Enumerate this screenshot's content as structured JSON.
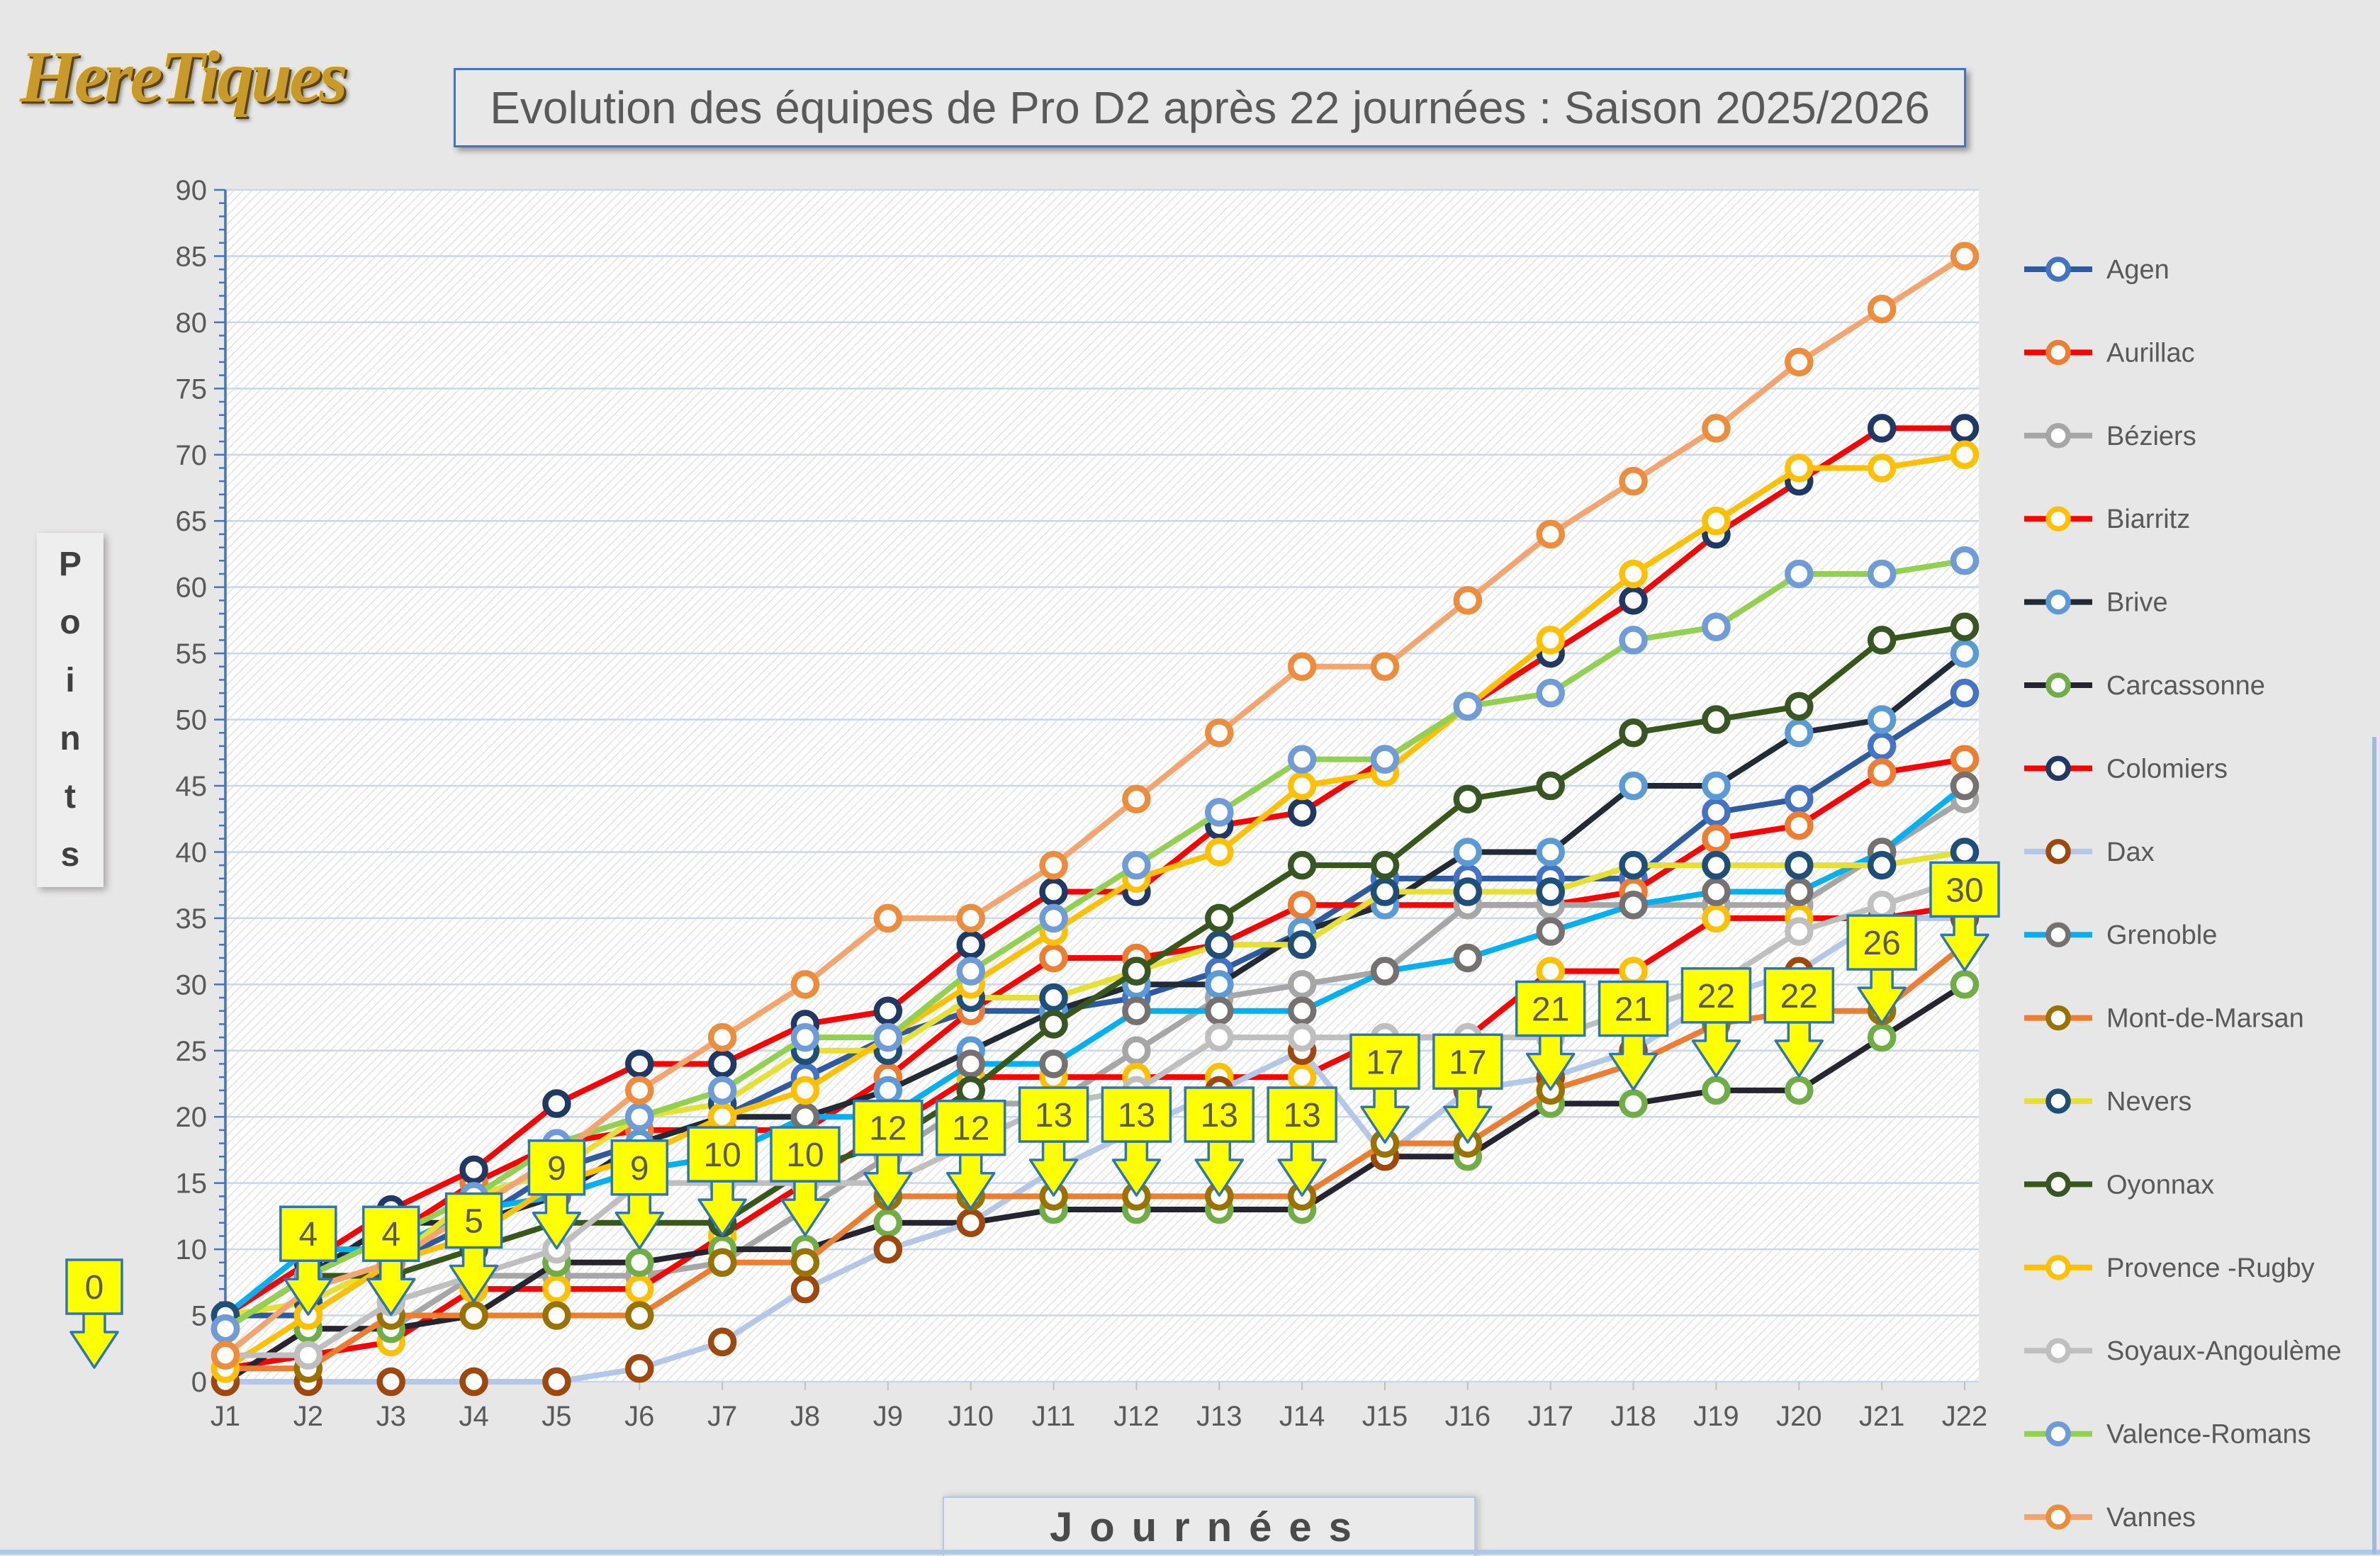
{
  "logo": {
    "text": "HereTiques"
  },
  "header": {
    "title": "Evolution des équipes de Pro D2 après 22 journées : Saison 2025/2026"
  },
  "y_axis_label": {
    "letters": [
      "P",
      "o",
      "i",
      "n",
      "t",
      "s"
    ],
    "text": "Points"
  },
  "x_axis_label": {
    "text": "Journées"
  },
  "chart_data": {
    "type": "line",
    "title": "Evolution des équipes de Pro D2 après 22 journées : Saison 2025/2026",
    "xlabel": "Journées",
    "ylabel": "Points",
    "x_categories": [
      "J1",
      "J2",
      "J3",
      "J4",
      "J5",
      "J6",
      "J7",
      "J8",
      "J9",
      "J10",
      "J11",
      "J12",
      "J13",
      "J14",
      "J15",
      "J16",
      "J17",
      "J18",
      "J19",
      "J20",
      "J21",
      "J22"
    ],
    "ylim": [
      0,
      90
    ],
    "ytick_step": 5,
    "grid": true,
    "legend_position": "right",
    "colors": {
      "axis": "#4472C4",
      "gridline": "#C9D7EC",
      "tick_label": "#595959",
      "plot_background": "#FFFFFF",
      "hatch": "#DCDCDC"
    },
    "series": [
      {
        "name": "Agen",
        "line_color": "#2E5B9F",
        "marker_color": "#4472C4",
        "values": [
          5,
          5,
          9,
          12,
          16,
          18,
          20,
          23,
          26,
          28,
          28,
          29,
          31,
          34,
          38,
          38,
          38,
          38,
          43,
          44,
          48,
          52
        ]
      },
      {
        "name": "Aurillac",
        "line_color": "#FF0000",
        "marker_color": "#ED7D31",
        "values": [
          4,
          8,
          11,
          15,
          18,
          19,
          19,
          19,
          23,
          28,
          32,
          32,
          33,
          36,
          36,
          36,
          36,
          37,
          41,
          42,
          46,
          47
        ]
      },
      {
        "name": "Béziers",
        "line_color": "#A6A6A6",
        "marker_color": "#A6A6A6",
        "values": [
          0,
          4,
          4,
          8,
          8,
          8,
          9,
          13,
          17,
          21,
          21,
          25,
          29,
          30,
          31,
          36,
          36,
          36,
          36,
          36,
          40,
          44
        ]
      },
      {
        "name": "Biarritz",
        "line_color": "#FF0000",
        "marker_color": "#FFC000",
        "values": [
          1,
          2,
          3,
          7,
          7,
          7,
          11,
          15,
          19,
          23,
          23,
          23,
          23,
          23,
          26,
          26,
          31,
          31,
          35,
          35,
          35,
          36
        ]
      },
      {
        "name": "Brive",
        "line_color": "#222A35",
        "marker_color": "#5B9BD5",
        "values": [
          4,
          8,
          12,
          12,
          14,
          18,
          20,
          20,
          22,
          25,
          28,
          30,
          30,
          34,
          36,
          40,
          40,
          45,
          45,
          49,
          50,
          55
        ]
      },
      {
        "name": "Carcassonne",
        "line_color": "#252430",
        "marker_color": "#70AD47",
        "values": [
          0,
          4,
          4,
          5,
          9,
          9,
          10,
          10,
          12,
          12,
          13,
          13,
          13,
          13,
          17,
          17,
          21,
          21,
          22,
          22,
          26,
          30
        ]
      },
      {
        "name": "Colomiers",
        "line_color": "#FF0000",
        "marker_color": "#1F3864",
        "values": [
          5,
          9,
          13,
          16,
          21,
          24,
          24,
          27,
          28,
          33,
          37,
          37,
          42,
          43,
          47,
          51,
          55,
          59,
          64,
          68,
          72,
          72
        ]
      },
      {
        "name": "Dax",
        "line_color": "#B4C7E7",
        "marker_color": "#9E480E",
        "values": [
          0,
          0,
          0,
          0,
          0,
          1,
          3,
          7,
          10,
          12,
          16,
          19,
          22,
          25,
          17,
          22,
          23,
          25,
          29,
          31,
          35,
          35
        ]
      },
      {
        "name": "Grenoble",
        "line_color": "#00B0F0",
        "marker_color": "#767171",
        "values": [
          5,
          10,
          10,
          13,
          14,
          16,
          17,
          20,
          20,
          24,
          24,
          28,
          28,
          28,
          31,
          32,
          34,
          36,
          37,
          37,
          40,
          45
        ]
      },
      {
        "name": "Mont-de-Marsan",
        "line_color": "#ED7D31",
        "marker_color": "#997300",
        "values": [
          1,
          1,
          5,
          5,
          5,
          5,
          9,
          9,
          14,
          14,
          14,
          14,
          14,
          14,
          18,
          18,
          22,
          24,
          27,
          28,
          28,
          33
        ]
      },
      {
        "name": "Nevers",
        "line_color": "#E5E031",
        "marker_color": "#1F4E79",
        "values": [
          5,
          6,
          9,
          14,
          16,
          20,
          21,
          25,
          25,
          29,
          29,
          31,
          33,
          33,
          37,
          37,
          37,
          39,
          39,
          39,
          39,
          40
        ]
      },
      {
        "name": "Oyonnax",
        "line_color": "#38571A",
        "marker_color": "#375623",
        "values": [
          4,
          8,
          8,
          10,
          12,
          12,
          12,
          16,
          18,
          22,
          27,
          31,
          35,
          39,
          39,
          44,
          45,
          49,
          50,
          51,
          56,
          57
        ]
      },
      {
        "name": "Provence -Rugby",
        "line_color": "#FFC000",
        "marker_color": "#FFC000",
        "values": [
          1,
          5,
          9,
          11,
          15,
          17,
          20,
          22,
          26,
          30,
          34,
          38,
          40,
          45,
          46,
          51,
          56,
          61,
          65,
          69,
          69,
          70
        ]
      },
      {
        "name": "Soyaux-Angoulème",
        "line_color": "#BFBFBF",
        "marker_color": "#BFBFBF",
        "values": [
          2,
          2,
          6,
          8,
          10,
          15,
          15,
          15,
          15,
          18,
          21,
          22,
          26,
          26,
          26,
          26,
          26,
          28,
          30,
          34,
          36,
          38
        ]
      },
      {
        "name": "Valence-Romans",
        "line_color": "#92D050",
        "marker_color": "#6F9BD8",
        "values": [
          4,
          8,
          11,
          14,
          18,
          20,
          22,
          26,
          26,
          31,
          35,
          39,
          43,
          47,
          47,
          51,
          52,
          56,
          57,
          61,
          61,
          62
        ]
      },
      {
        "name": "Vannes",
        "line_color": "#F4A56F",
        "marker_color": "#ED8C3B",
        "values": [
          2,
          7,
          9,
          13,
          17,
          22,
          26,
          30,
          35,
          35,
          39,
          44,
          49,
          54,
          54,
          59,
          64,
          68,
          72,
          77,
          81,
          85
        ]
      }
    ],
    "callouts": {
      "series": "Carcassonne",
      "values": [
        0,
        4,
        4,
        5,
        9,
        9,
        10,
        10,
        12,
        12,
        13,
        13,
        13,
        13,
        17,
        17,
        21,
        21,
        22,
        22,
        26,
        30
      ],
      "style": {
        "fill": "#FFFF00",
        "border": "#2E75B6",
        "text_color": "#595959"
      }
    }
  }
}
